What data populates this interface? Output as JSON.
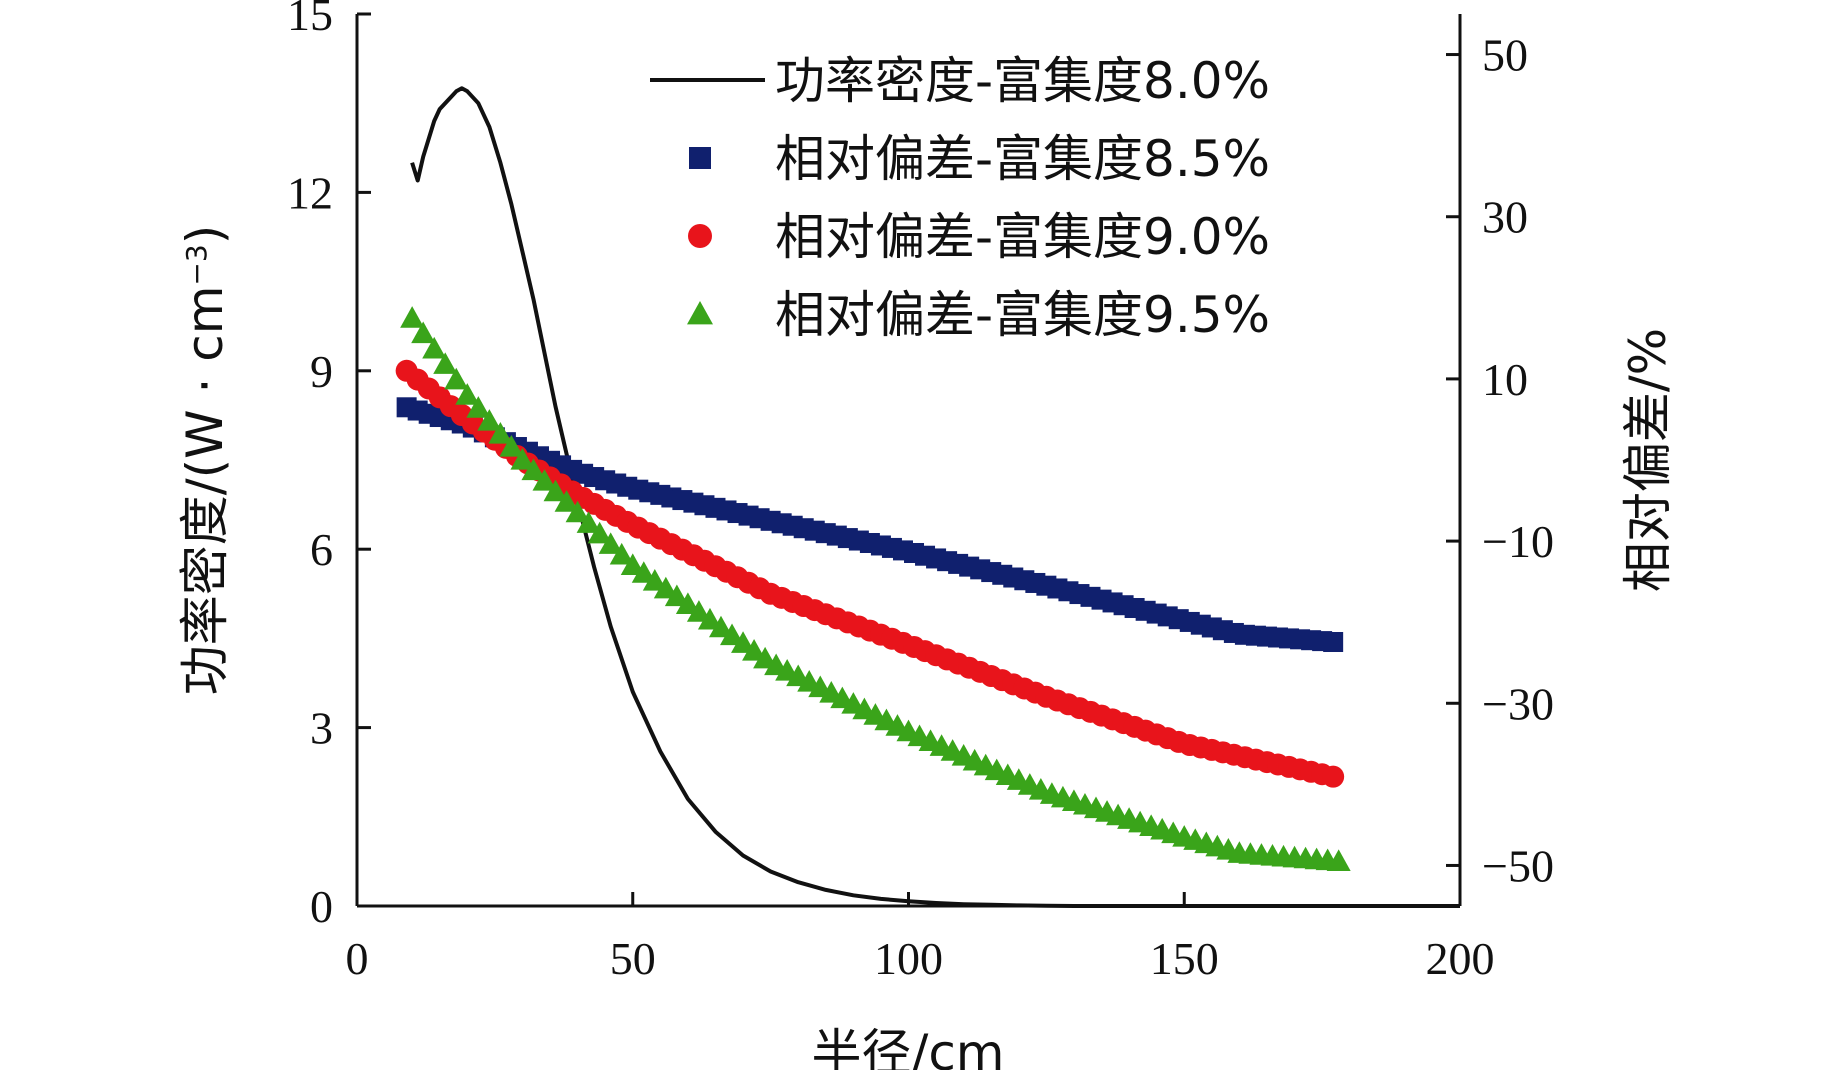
{
  "chart_data": {
    "type": "line",
    "title": "",
    "xlabel": "半径/cm",
    "ylabel_left_main": "功率密度/(W · cm",
    "ylabel_left_sup": "−3",
    "ylabel_left_close": ")",
    "ylabel_right": "相对偏差/%",
    "xlim": [
      0,
      200
    ],
    "ylim_left": [
      0,
      15
    ],
    "ylim_right": [
      -55,
      55
    ],
    "xticks": [
      "0",
      "50",
      "100",
      "150",
      "200"
    ],
    "yticks_left": [
      "0",
      "3",
      "6",
      "9",
      "12",
      "15"
    ],
    "yticks_right": [
      "−50",
      "−30",
      "−10",
      "10",
      "30",
      "50"
    ],
    "grid": false,
    "legend_position": "top-right",
    "colors": {
      "line": "#111111",
      "s85": "#10206e",
      "s90": "#e8141b",
      "s95": "#3aa41a"
    },
    "series": [
      {
        "name": "功率密度-富集度8.0%",
        "axis": "left",
        "marker": "line",
        "x": [
          10,
          11,
          12,
          13,
          14,
          15,
          16,
          17,
          18,
          19,
          20,
          22,
          24,
          26,
          28,
          30,
          32,
          34,
          36,
          38,
          40,
          43,
          46,
          50,
          55,
          60,
          65,
          70,
          75,
          80,
          85,
          90,
          95,
          100,
          105,
          110,
          115,
          120,
          125,
          130,
          140,
          150,
          160,
          170,
          180,
          190,
          200
        ],
        "y": [
          12.5,
          12.2,
          12.6,
          12.9,
          13.2,
          13.4,
          13.5,
          13.6,
          13.7,
          13.75,
          13.7,
          13.5,
          13.1,
          12.5,
          11.8,
          11.0,
          10.2,
          9.3,
          8.4,
          7.6,
          6.8,
          5.7,
          4.7,
          3.6,
          2.6,
          1.8,
          1.25,
          0.85,
          0.58,
          0.4,
          0.27,
          0.18,
          0.12,
          0.08,
          0.05,
          0.03,
          0.02,
          0.01,
          0.005,
          0.0,
          0.0,
          0.0,
          0.0,
          0.0,
          0.0,
          0.0,
          0.0
        ]
      },
      {
        "name": "相对偏差-富集度8.5%",
        "axis": "right",
        "marker": "square",
        "x_start": 9,
        "x_end": 178,
        "x_step": 2,
        "anchors_x": [
          9,
          20,
          30,
          40,
          50,
          75,
          100,
          125,
          150,
          160,
          178
        ],
        "anchors_y": [
          6.5,
          4.3,
          1.3,
          -1.5,
          -3.5,
          -7.5,
          -11.3,
          -15.5,
          -19.8,
          -21.5,
          -22.5
        ]
      },
      {
        "name": "相对偏差-富集度9.0%",
        "axis": "right",
        "marker": "circle",
        "x_start": 9,
        "x_end": 178,
        "x_step": 2,
        "anchors_x": [
          9,
          20,
          30,
          40,
          50,
          75,
          100,
          125,
          150,
          160,
          178
        ],
        "anchors_y": [
          11,
          5,
          0,
          -4.3,
          -8,
          -16.5,
          -22.8,
          -29.2,
          -35,
          -36.5,
          -39.2
        ]
      },
      {
        "name": "相对偏差-富集度9.5%",
        "axis": "right",
        "marker": "triangle",
        "x_start": 10,
        "x_end": 178,
        "x_step": 2,
        "anchors_x": [
          10,
          20,
          30,
          40,
          50,
          75,
          100,
          125,
          150,
          160,
          178
        ],
        "anchors_y": [
          17.5,
          8,
          0,
          -6.5,
          -13,
          -25,
          -33.5,
          -41,
          -46.5,
          -48.5,
          -49.5
        ]
      }
    ]
  }
}
